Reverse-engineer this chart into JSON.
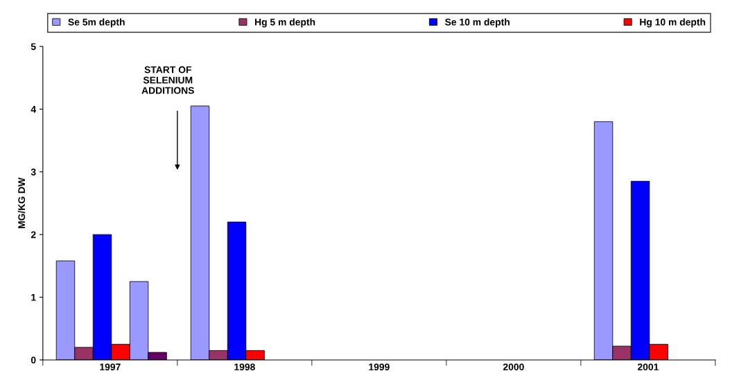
{
  "chart_data": {
    "type": "bar",
    "categories": [
      "1997",
      "1998",
      "1999",
      "2000",
      "2001"
    ],
    "ylabel": "MG/KG DW",
    "series": [
      {
        "name": "Se 5m depth",
        "color": "#9999ff",
        "values": [
          1.58,
          4.05,
          null,
          null,
          3.8
        ]
      },
      {
        "name": "Hg 5 m depth",
        "color": "#993366",
        "values": [
          0.2,
          0.15,
          null,
          null,
          0.22
        ]
      },
      {
        "name": "Se 10 m depth",
        "color": "#0000ff",
        "values": [
          2.0,
          2.2,
          null,
          null,
          2.85
        ]
      },
      {
        "name": "Hg 10 m depth",
        "color": "#ff0000",
        "values": [
          0.25,
          0.15,
          null,
          null,
          0.25
        ]
      },
      {
        "color": "#9999ff",
        "values": [
          1.25,
          null,
          null,
          null,
          null
        ]
      },
      {
        "color": "#660066",
        "values": [
          0.12,
          null,
          null,
          null,
          null
        ]
      }
    ],
    "ylim": [
      0,
      5
    ],
    "yticks": [
      0,
      1,
      2,
      3,
      4,
      5
    ],
    "grid": false,
    "legend": "top",
    "annotations": [
      "START OF\nSELENIUM\nADDITIONS"
    ]
  }
}
